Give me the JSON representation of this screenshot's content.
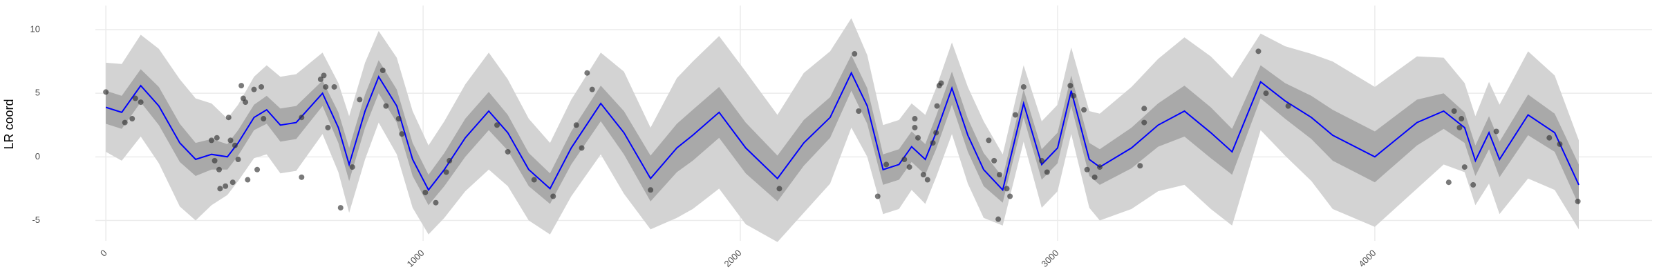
{
  "chart_data": {
    "type": "line",
    "y_label": "LR coord",
    "xlim": [
      -33,
      4874
    ],
    "ylim": [
      -6.6,
      11.9
    ],
    "xticks": [
      0,
      1000,
      2000,
      3000,
      4000
    ],
    "yticks": [
      -5,
      0,
      5,
      10
    ],
    "grid": true,
    "x": [
      0,
      50,
      110,
      167,
      233,
      283,
      333,
      383,
      417,
      467,
      507,
      550,
      600,
      683,
      733,
      767,
      817,
      860,
      917,
      967,
      1017,
      1067,
      1133,
      1207,
      1267,
      1333,
      1400,
      1467,
      1560,
      1633,
      1717,
      1800,
      1850,
      1933,
      2017,
      2117,
      2200,
      2283,
      2350,
      2400,
      2450,
      2500,
      2540,
      2583,
      2617,
      2667,
      2717,
      2767,
      2827,
      2893,
      2950,
      3000,
      3043,
      3100,
      3133,
      3233,
      3317,
      3400,
      3483,
      3550,
      3640,
      3717,
      3800,
      3867,
      4000,
      4133,
      4217,
      4283,
      4317,
      4360,
      4393,
      4483,
      4567,
      4643
    ],
    "bands": [
      {
        "color": "#d3d3d3",
        "lower": [
          0.4,
          -0.3,
          1.6,
          -0.5,
          -3.9,
          -5.0,
          -3.8,
          -3.0,
          -1.9,
          -0.1,
          0.2,
          -1.3,
          -1.1,
          1.8,
          -1.2,
          -4.4,
          -0.2,
          2.7,
          0.2,
          -4.0,
          -6.1,
          -4.8,
          -2.7,
          -1.0,
          -2.3,
          -5.0,
          -6.1,
          -3.1,
          0.2,
          -2.9,
          -5.7,
          -4.8,
          -4.1,
          -2.5,
          -5.3,
          -6.7,
          -4.4,
          -2.1,
          2.3,
          0,
          -4.5,
          -4.1,
          -2.6,
          -3.7,
          -1.6,
          1.8,
          -2.1,
          -4.8,
          -5.4,
          1.2,
          -4.0,
          -2.7,
          1.8,
          -4.0,
          -5.0,
          -4.1,
          -2.7,
          -2.2,
          -4.1,
          -5.4,
          2.1,
          0.1,
          -1.9,
          -4.1,
          -5.5,
          -2.5,
          -0.6,
          -1.2,
          -3.8,
          -2.1,
          -4.5,
          -1.7,
          -2.6,
          -5.7
        ],
        "upper": [
          7.4,
          7.3,
          9.6,
          8.5,
          6.1,
          4.6,
          4.2,
          3.0,
          4.1,
          6.3,
          7.2,
          6.3,
          6.5,
          8.2,
          5.8,
          3.2,
          7.4,
          9.9,
          7.8,
          3.6,
          0.9,
          2.8,
          5.7,
          8.2,
          6.1,
          3.0,
          1.1,
          4.5,
          8.2,
          6.7,
          2.3,
          6.2,
          7.5,
          9.5,
          6.7,
          3.3,
          6.6,
          8.3,
          10.9,
          8.0,
          2.5,
          2.9,
          4.2,
          3.3,
          5.4,
          9.0,
          5.5,
          2.8,
          0.2,
          7.2,
          2.8,
          4.1,
          8.6,
          3.6,
          3.4,
          5.5,
          7.7,
          9.4,
          7.9,
          6.2,
          9.7,
          8.7,
          8.1,
          7.5,
          5.5,
          7.9,
          7.8,
          5.8,
          3.2,
          5.9,
          4.1,
          8.3,
          6.4,
          1.3
        ]
      },
      {
        "color": "#a9a9a9",
        "lower": [
          2.6,
          2.2,
          4.3,
          2.5,
          -0.4,
          -1.5,
          -1.0,
          -1.0,
          0.1,
          2.1,
          2.6,
          1.2,
          1.4,
          4.0,
          1.1,
          -1.9,
          2.3,
          5.0,
          2.7,
          -1.5,
          -3.8,
          -2.3,
          0,
          2.1,
          0.5,
          -2.3,
          -3.7,
          -0.6,
          2.8,
          0.2,
          -3.5,
          -1.2,
          -0.3,
          1.5,
          -1.3,
          -3.5,
          -0.7,
          1.5,
          5.2,
          2.6,
          -2.2,
          -1.8,
          -0.4,
          -1.4,
          0.6,
          4.1,
          0.4,
          -2.3,
          -3.6,
          3.1,
          -1.8,
          -0.5,
          4.0,
          -1.5,
          -2.2,
          -0.9,
          0.8,
          1.6,
          -0.1,
          -1.4,
          4.6,
          3.0,
          1.4,
          -0.3,
          -2.0,
          0.9,
          2.2,
          1.1,
          -1.5,
          0.6,
          -1.6,
          1.7,
          0.4,
          -3.8
        ],
        "upper": [
          5.2,
          4.8,
          6.9,
          5.5,
          2.6,
          1.1,
          1.4,
          1.0,
          2.1,
          4.1,
          4.8,
          3.8,
          4.0,
          6.0,
          3.5,
          0.7,
          4.9,
          7.6,
          5.3,
          1.1,
          -1.4,
          0.3,
          3.0,
          5.1,
          3.3,
          0.3,
          -1.3,
          2.0,
          5.6,
          3.6,
          0.1,
          2.6,
          3.7,
          5.5,
          2.7,
          0.1,
          2.9,
          4.7,
          8.0,
          5.4,
          0.2,
          0.6,
          2.0,
          1.0,
          3.2,
          6.7,
          3.0,
          0.3,
          -1.6,
          5.3,
          0.6,
          1.9,
          6.4,
          1.1,
          0.6,
          2.3,
          4.2,
          5.6,
          3.9,
          2.2,
          7.2,
          5.8,
          4.8,
          3.7,
          2.0,
          4.5,
          5.0,
          3.5,
          0.9,
          3.2,
          1.2,
          4.9,
          3.4,
          -0.6
        ]
      }
    ],
    "series": [
      {
        "color": "#0000ff",
        "values": [
          3.9,
          3.5,
          5.6,
          4.0,
          1.1,
          -0.2,
          0.2,
          0,
          1.1,
          3.1,
          3.7,
          2.5,
          2.7,
          5.0,
          2.3,
          -0.6,
          3.6,
          6.3,
          4.0,
          -0.2,
          -2.6,
          -1.0,
          1.5,
          3.6,
          1.9,
          -1.0,
          -2.5,
          0.7,
          4.2,
          1.9,
          -1.7,
          0.7,
          1.7,
          3.5,
          0.7,
          -1.7,
          1.1,
          3.1,
          6.6,
          4.0,
          -1.0,
          -0.6,
          0.8,
          -0.2,
          1.9,
          5.4,
          1.7,
          -1.0,
          -2.6,
          4.2,
          -0.6,
          0.7,
          5.2,
          -0.2,
          -0.8,
          0.7,
          2.5,
          3.6,
          1.9,
          0.4,
          5.9,
          4.4,
          3.1,
          1.7,
          0,
          2.7,
          3.6,
          2.3,
          -0.3,
          1.9,
          -0.2,
          3.3,
          1.9,
          -2.2
        ]
      }
    ],
    "points": {
      "color": "#333333",
      "x": [
        0,
        60,
        83,
        93,
        110,
        333,
        350,
        343,
        357,
        360,
        377,
        387,
        393,
        407,
        400,
        417,
        427,
        433,
        440,
        447,
        467,
        490,
        497,
        477,
        617,
        617,
        677,
        687,
        693,
        700,
        720,
        740,
        777,
        800,
        873,
        883,
        923,
        933,
        1007,
        1040,
        1073,
        1083,
        1233,
        1267,
        1350,
        1410,
        1483,
        1500,
        1517,
        1533,
        1717,
        2123,
        2360,
        2373,
        2433,
        2460,
        2517,
        2533,
        2550,
        2550,
        2560,
        2577,
        2590,
        2607,
        2617,
        2620,
        2627,
        2633,
        2783,
        2800,
        2813,
        2817,
        2840,
        2850,
        2867,
        2893,
        2950,
        2967,
        3040,
        3050,
        3083,
        3093,
        3117,
        3133,
        3260,
        3273,
        3273,
        3633,
        3657,
        3727,
        4233,
        4250,
        4273,
        4267,
        4283,
        4310,
        4383,
        4550,
        4583,
        4640
      ],
      "y": [
        5.1,
        2.7,
        3.0,
        4.6,
        4.3,
        1.3,
        1.5,
        -0.3,
        -1.0,
        -2.5,
        -2.3,
        3.1,
        1.3,
        0.9,
        -2.0,
        -0.2,
        5.6,
        4.6,
        4.3,
        -1.8,
        5.3,
        5.5,
        3.0,
        -1.0,
        -1.6,
        3.1,
        6.1,
        6.4,
        5.5,
        2.3,
        5.5,
        -4.0,
        -0.8,
        4.5,
        6.8,
        4.0,
        3.0,
        1.8,
        -2.8,
        -3.6,
        -1.2,
        -0.3,
        2.5,
        0.4,
        -1.8,
        -3.1,
        2.5,
        0.7,
        6.6,
        5.3,
        -2.6,
        -2.5,
        8.1,
        3.6,
        -3.1,
        -0.6,
        -0.2,
        -0.8,
        3.0,
        2.3,
        1.5,
        -1.4,
        -1.8,
        1.1,
        1.9,
        4.0,
        5.6,
        5.8,
        1.3,
        -0.3,
        -4.9,
        -1.4,
        -2.5,
        -3.1,
        3.3,
        5.5,
        -0.3,
        -1.2,
        5.6,
        4.8,
        3.7,
        -1.0,
        -1.6,
        -0.8,
        -0.7,
        3.8,
        2.7,
        8.3,
        5.0,
        4.0,
        -2.0,
        3.6,
        3.0,
        2.3,
        -0.8,
        -2.2,
        2.0,
        1.5,
        1.0,
        -3.5
      ]
    }
  }
}
